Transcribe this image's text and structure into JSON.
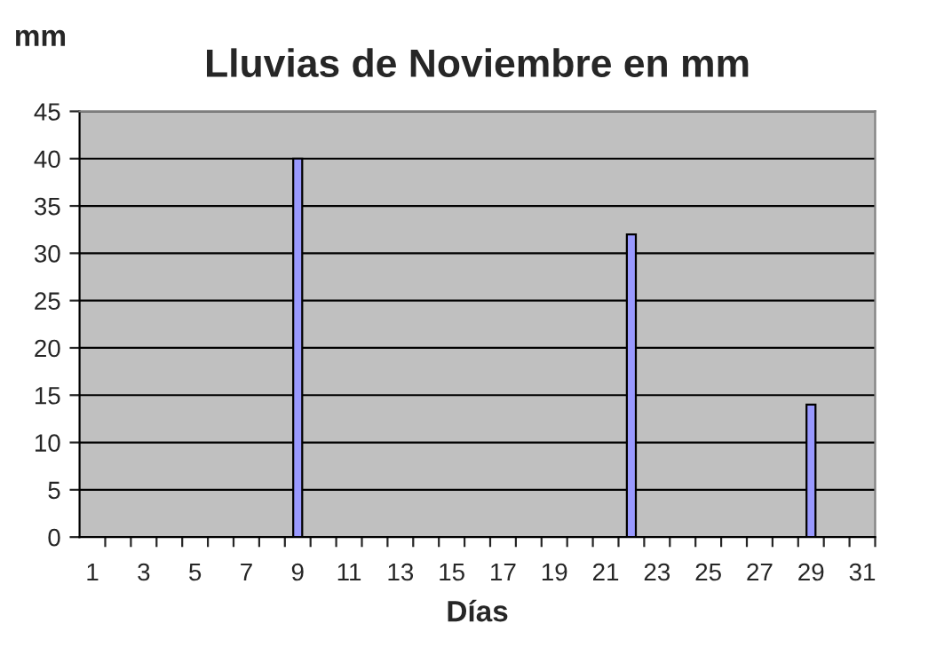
{
  "chart_data": {
    "type": "bar",
    "title": "Lluvias de Noviembre en mm",
    "xlabel": "Días",
    "ylabel": "mm",
    "categories": [
      "1",
      null,
      "3",
      null,
      "5",
      null,
      "7",
      null,
      "9",
      null,
      "11",
      null,
      "13",
      null,
      "15",
      null,
      "17",
      null,
      "19",
      null,
      "21",
      null,
      "23",
      null,
      "25",
      null,
      "27",
      null,
      "29",
      null,
      "31"
    ],
    "values": [
      0,
      0,
      0,
      0,
      0,
      0,
      0,
      0,
      40,
      0,
      0,
      0,
      0,
      0,
      0,
      0,
      0,
      0,
      0,
      0,
      0,
      32,
      0,
      0,
      0,
      0,
      0,
      0,
      14,
      0,
      0
    ],
    "color": "#9999ff",
    "ylim": [
      0,
      45
    ],
    "yticks": [
      0,
      5,
      10,
      15,
      20,
      25,
      30,
      35,
      40,
      45
    ],
    "grid": "y",
    "legend": false
  }
}
